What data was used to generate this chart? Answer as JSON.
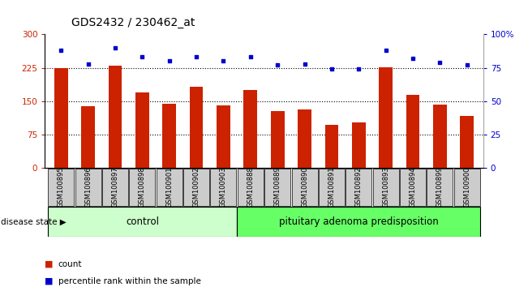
{
  "title": "GDS2432 / 230462_at",
  "categories": [
    "GSM100895",
    "GSM100896",
    "GSM100897",
    "GSM100898",
    "GSM100901",
    "GSM100902",
    "GSM100903",
    "GSM100888",
    "GSM100889",
    "GSM100890",
    "GSM100891",
    "GSM100892",
    "GSM100893",
    "GSM100894",
    "GSM100899",
    "GSM100900"
  ],
  "bar_values": [
    225,
    138,
    230,
    170,
    145,
    183,
    140,
    175,
    128,
    132,
    97,
    103,
    226,
    165,
    142,
    117
  ],
  "dot_values": [
    88,
    78,
    90,
    83,
    80,
    83,
    80,
    83,
    77,
    78,
    74,
    74,
    88,
    82,
    79,
    77
  ],
  "bar_color": "#cc2200",
  "dot_color": "#0000cc",
  "ylim_left": [
    0,
    300
  ],
  "ylim_right": [
    0,
    100
  ],
  "yticks_left": [
    0,
    75,
    150,
    225,
    300
  ],
  "ytick_labels_left": [
    "0",
    "75",
    "150",
    "225",
    "300"
  ],
  "yticks_right": [
    0,
    25,
    50,
    75,
    100
  ],
  "ytick_labels_right": [
    "0",
    "25",
    "50",
    "75",
    "100%"
  ],
  "hlines": [
    75,
    150,
    225
  ],
  "n_control": 7,
  "n_pituitary": 9,
  "control_label": "control",
  "pituitary_label": "pituitary adenoma predisposition",
  "disease_state_label": "disease state",
  "legend_count_label": "count",
  "legend_percentile_label": "percentile rank within the sample",
  "control_color": "#ccffcc",
  "pituitary_color": "#66ff66",
  "bar_width": 0.5,
  "xtick_bg_color": "#cccccc"
}
